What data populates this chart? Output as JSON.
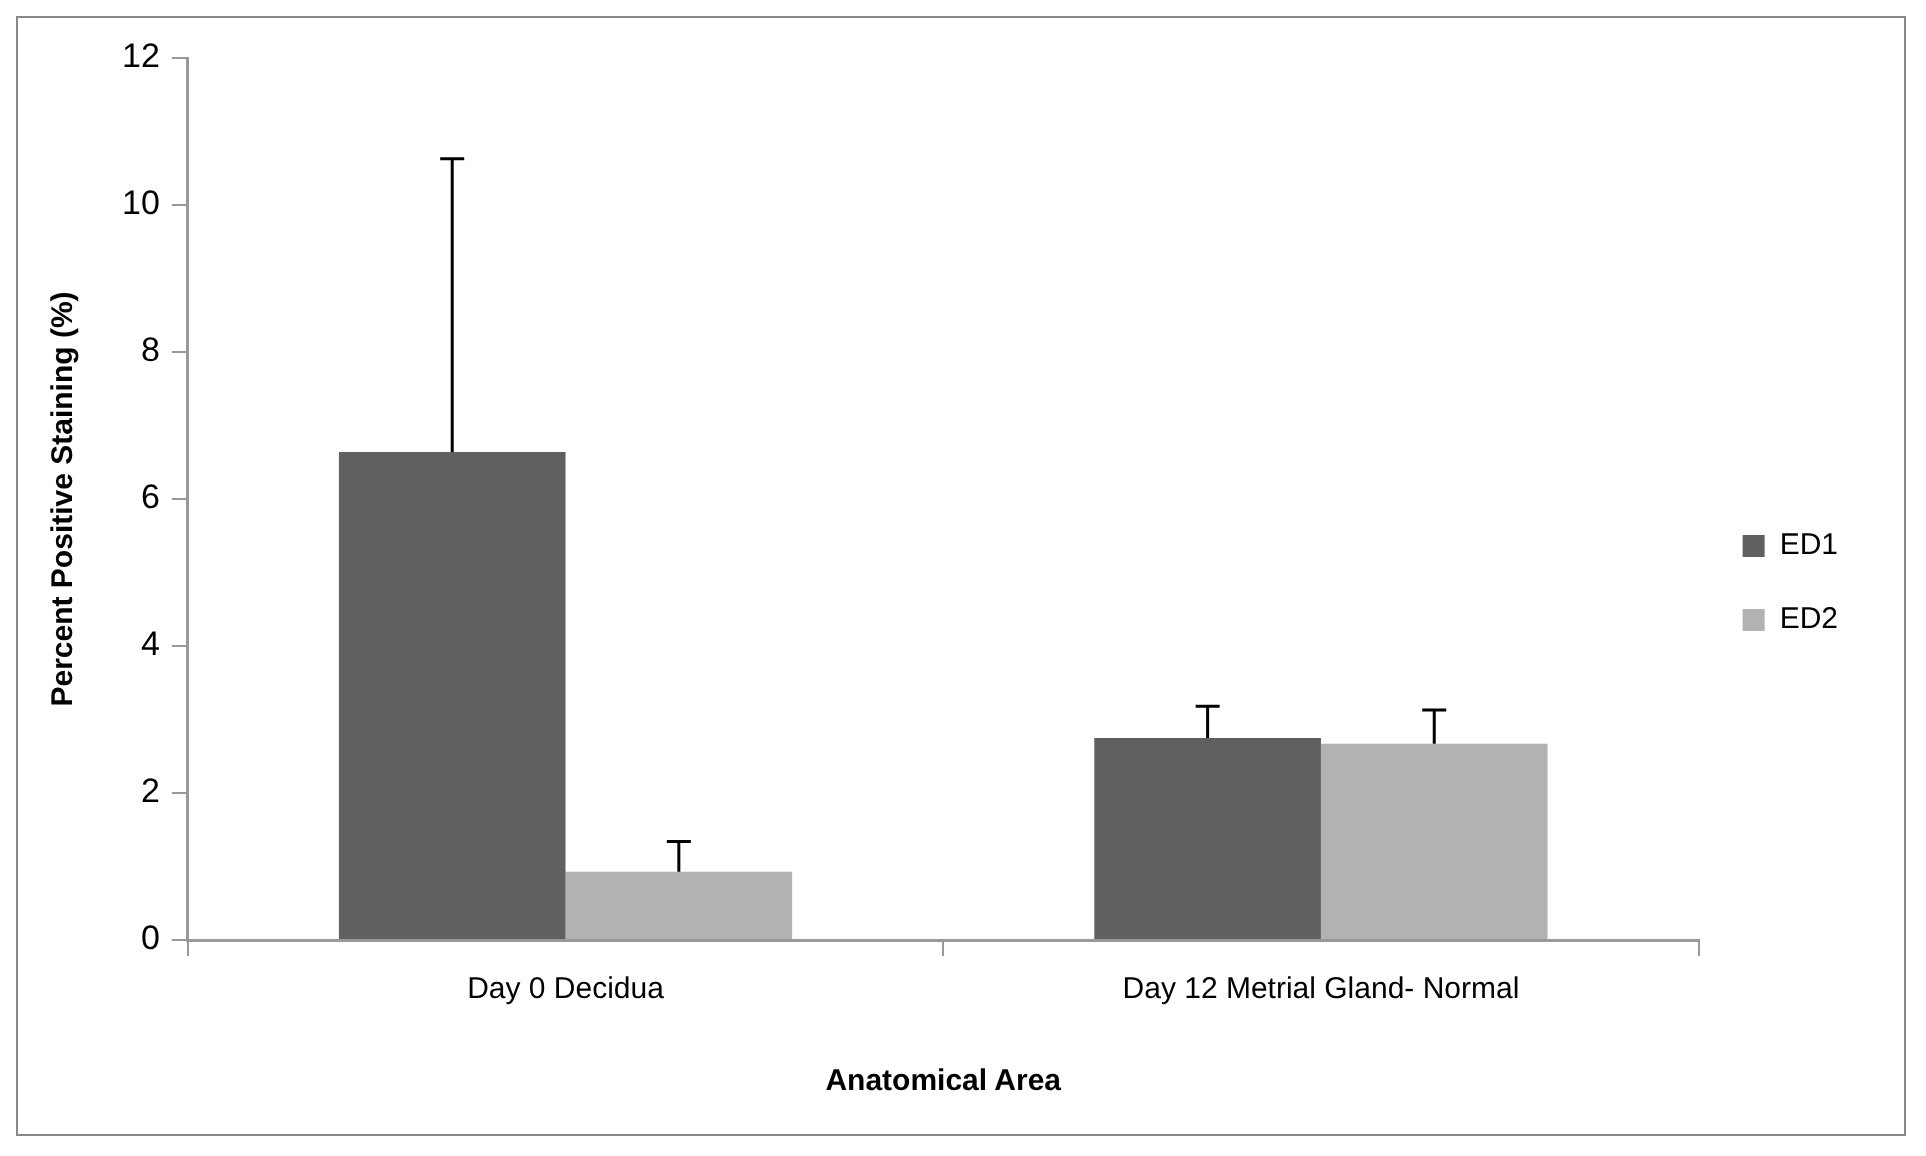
{
  "chart_data": {
    "type": "bar",
    "xlabel": "Anatomical Area",
    "ylabel": "Percent Positive Staining (%)",
    "categories": [
      "Day 0 Decidua",
      "Day 12 Metrial Gland- Normal"
    ],
    "series": [
      {
        "name": "ED1",
        "color": "#606060",
        "values": [
          6.64,
          2.75
        ],
        "errors": [
          [
            6.64,
            10.63
          ],
          [
            2.75,
            3.18
          ]
        ]
      },
      {
        "name": "ED2",
        "color": "#b2b2b2",
        "values": [
          0.93,
          2.67
        ],
        "errors": [
          [
            0.93,
            1.34
          ],
          [
            2.67,
            3.13
          ]
        ]
      }
    ],
    "ylim": [
      0,
      12
    ],
    "yticks": [
      0,
      2,
      4,
      6,
      8,
      10,
      12
    ],
    "grid": false,
    "legend": "right"
  }
}
